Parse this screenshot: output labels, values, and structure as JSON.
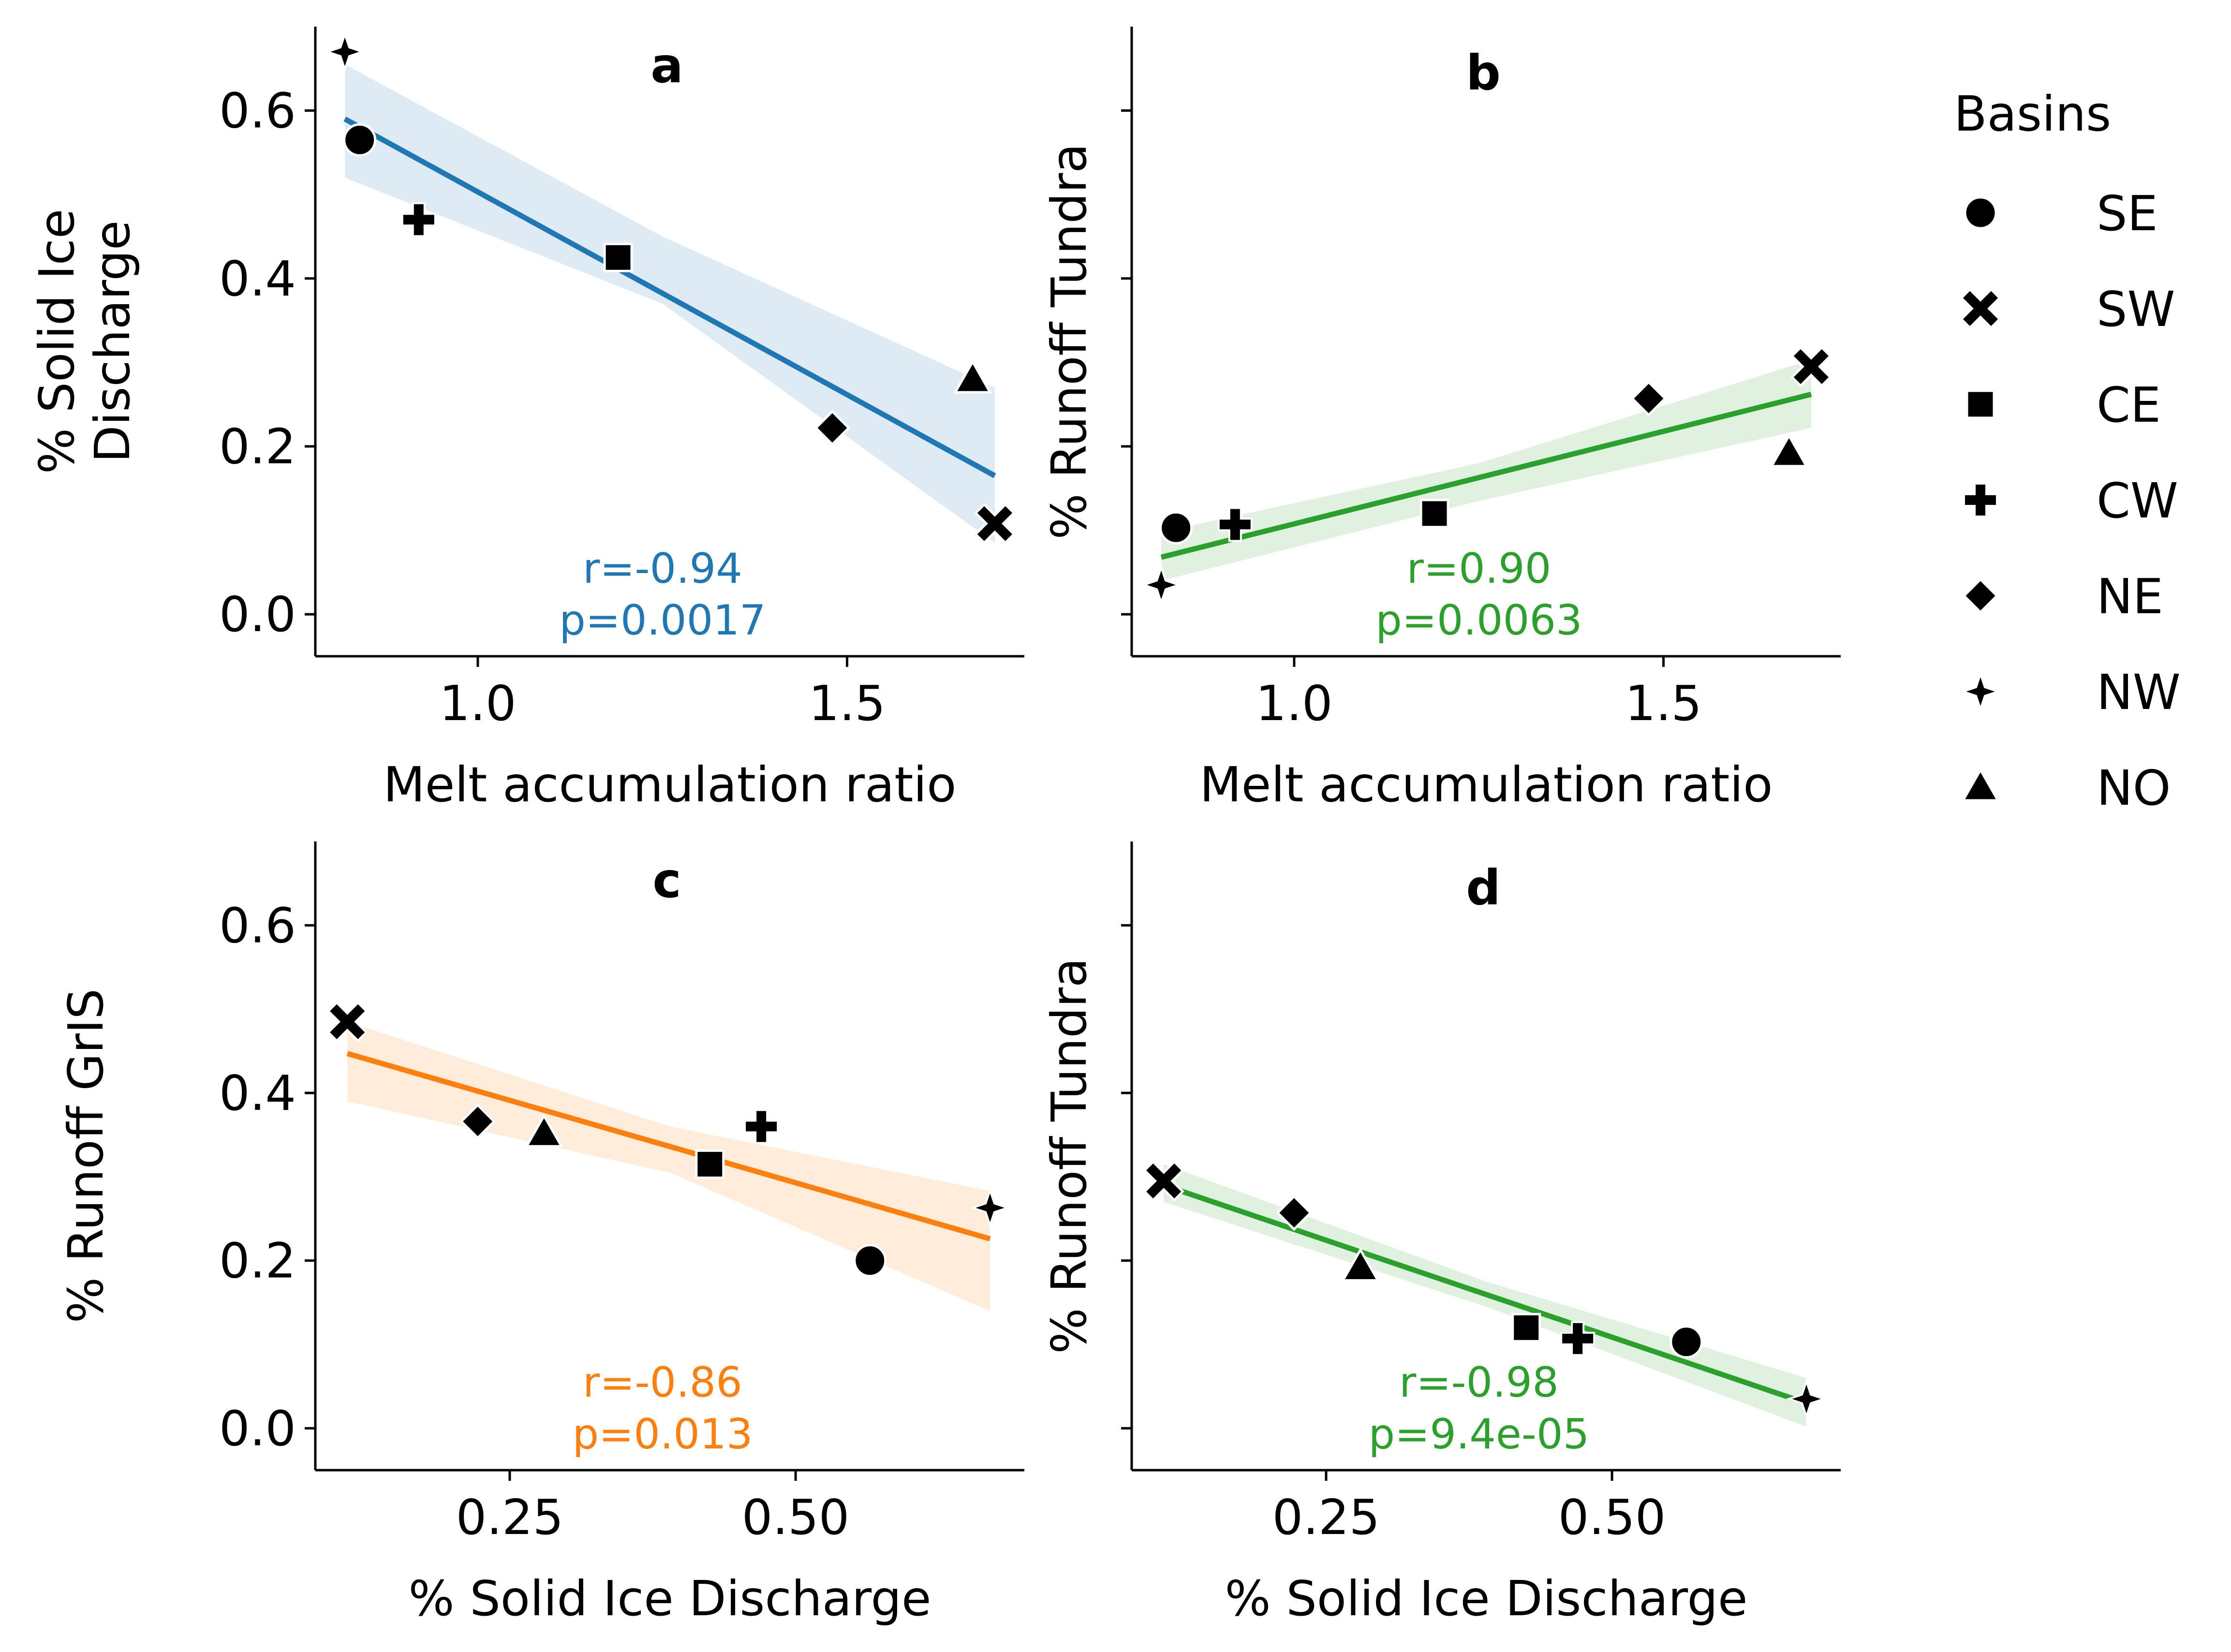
{
  "legend": {
    "title": "Basins",
    "entries": [
      {
        "label": "SE",
        "marker": "circle"
      },
      {
        "label": "SW",
        "marker": "x"
      },
      {
        "label": "CE",
        "marker": "square"
      },
      {
        "label": "CW",
        "marker": "plus"
      },
      {
        "label": "NE",
        "marker": "diamond"
      },
      {
        "label": "NW",
        "marker": "star4"
      },
      {
        "label": "NO",
        "marker": "triangle"
      }
    ]
  },
  "chart_data": [
    {
      "type": "scatter",
      "panel": "a",
      "xlabel": "Melt accumulation ratio",
      "ylabel": [
        "% Solid Ice",
        "Discharge"
      ],
      "xlim": [
        0.78,
        1.74
      ],
      "ylim": [
        -0.05,
        0.7
      ],
      "xticks": [
        {
          "v": 1.0,
          "label": "1.0"
        },
        {
          "v": 1.5,
          "label": "1.5"
        }
      ],
      "yticks": [
        {
          "v": 0.0,
          "label": "0.0"
        },
        {
          "v": 0.2,
          "label": "0.2"
        },
        {
          "v": 0.4,
          "label": "0.4"
        },
        {
          "v": 0.6,
          "label": "0.6"
        }
      ],
      "show_ytick_labels": true,
      "color": "#1f77b4",
      "band_color": "#1f77b4",
      "points": [
        {
          "basin": "SE",
          "marker": "circle",
          "x": 0.84,
          "y": 0.565
        },
        {
          "basin": "SW",
          "marker": "x",
          "x": 1.7,
          "y": 0.108
        },
        {
          "basin": "CE",
          "marker": "square",
          "x": 1.19,
          "y": 0.425
        },
        {
          "basin": "CW",
          "marker": "plus",
          "x": 0.92,
          "y": 0.47
        },
        {
          "basin": "NE",
          "marker": "diamond",
          "x": 1.48,
          "y": 0.222
        },
        {
          "basin": "NW",
          "marker": "star4",
          "x": 0.82,
          "y": 0.67
        },
        {
          "basin": "NO",
          "marker": "triangle",
          "x": 1.67,
          "y": 0.28
        }
      ],
      "fit": {
        "x": [
          0.82,
          1.7
        ],
        "y": [
          0.59,
          0.165
        ]
      },
      "band": {
        "x": [
          0.82,
          1.25,
          1.7
        ],
        "lower": [
          0.52,
          0.37,
          0.085
        ],
        "upper": [
          0.655,
          0.45,
          0.27
        ]
      },
      "r_label": "r=-0.94",
      "p_label": "p=0.0017"
    },
    {
      "type": "scatter",
      "panel": "b",
      "xlabel": "Melt accumulation ratio",
      "ylabel": [
        "% Runoff Tundra"
      ],
      "xlim": [
        0.78,
        1.74
      ],
      "ylim": [
        -0.05,
        0.7
      ],
      "xticks": [
        {
          "v": 1.0,
          "label": "1.0"
        },
        {
          "v": 1.5,
          "label": "1.5"
        }
      ],
      "yticks": [
        {
          "v": 0.0,
          "label": ""
        },
        {
          "v": 0.2,
          "label": ""
        },
        {
          "v": 0.4,
          "label": ""
        },
        {
          "v": 0.6,
          "label": ""
        }
      ],
      "show_ytick_labels": false,
      "color": "#2ca02c",
      "band_color": "#2ca02c",
      "points": [
        {
          "basin": "SE",
          "marker": "circle",
          "x": 0.84,
          "y": 0.103
        },
        {
          "basin": "SW",
          "marker": "x",
          "x": 1.7,
          "y": 0.295
        },
        {
          "basin": "CE",
          "marker": "square",
          "x": 1.19,
          "y": 0.12
        },
        {
          "basin": "CW",
          "marker": "plus",
          "x": 0.92,
          "y": 0.107
        },
        {
          "basin": "NE",
          "marker": "diamond",
          "x": 1.48,
          "y": 0.257
        },
        {
          "basin": "NW",
          "marker": "star4",
          "x": 0.82,
          "y": 0.035
        },
        {
          "basin": "NO",
          "marker": "triangle",
          "x": 1.67,
          "y": 0.192
        }
      ],
      "fit": {
        "x": [
          0.82,
          1.7
        ],
        "y": [
          0.068,
          0.262
        ]
      },
      "band": {
        "x": [
          0.82,
          1.25,
          1.7
        ],
        "lower": [
          0.04,
          0.135,
          0.222
        ],
        "upper": [
          0.098,
          0.18,
          0.303
        ]
      },
      "r_label": "r=0.90",
      "p_label": "p=0.0063"
    },
    {
      "type": "scatter",
      "panel": "c",
      "xlabel": "% Solid Ice Discharge",
      "ylabel": [
        "% Runoff GrIS"
      ],
      "xlim": [
        0.08,
        0.7
      ],
      "ylim": [
        -0.05,
        0.7
      ],
      "xticks": [
        {
          "v": 0.25,
          "label": "0.25"
        },
        {
          "v": 0.5,
          "label": "0.50"
        }
      ],
      "yticks": [
        {
          "v": 0.0,
          "label": "0.0"
        },
        {
          "v": 0.2,
          "label": "0.2"
        },
        {
          "v": 0.4,
          "label": "0.4"
        },
        {
          "v": 0.6,
          "label": "0.6"
        }
      ],
      "show_ytick_labels": true,
      "color": "#ff7f0e",
      "band_color": "#ff7f0e",
      "points": [
        {
          "basin": "SE",
          "marker": "circle",
          "x": 0.565,
          "y": 0.2
        },
        {
          "basin": "SW",
          "marker": "x",
          "x": 0.108,
          "y": 0.485
        },
        {
          "basin": "CE",
          "marker": "square",
          "x": 0.425,
          "y": 0.315
        },
        {
          "basin": "CW",
          "marker": "plus",
          "x": 0.47,
          "y": 0.36
        },
        {
          "basin": "NE",
          "marker": "diamond",
          "x": 0.222,
          "y": 0.366
        },
        {
          "basin": "NW",
          "marker": "star4",
          "x": 0.67,
          "y": 0.263
        },
        {
          "basin": "NO",
          "marker": "triangle",
          "x": 0.28,
          "y": 0.352
        }
      ],
      "fit": {
        "x": [
          0.108,
          0.67
        ],
        "y": [
          0.447,
          0.226
        ]
      },
      "band": {
        "x": [
          0.108,
          0.39,
          0.67
        ],
        "lower": [
          0.39,
          0.305,
          0.14
        ],
        "upper": [
          0.485,
          0.36,
          0.283
        ]
      },
      "r_label": "r=-0.86",
      "p_label": "p=0.013"
    },
    {
      "type": "scatter",
      "panel": "d",
      "xlabel": "% Solid Ice Discharge",
      "ylabel": [
        "% Runoff Tundra"
      ],
      "xlim": [
        0.08,
        0.7
      ],
      "ylim": [
        -0.05,
        0.7
      ],
      "xticks": [
        {
          "v": 0.25,
          "label": "0.25"
        },
        {
          "v": 0.5,
          "label": "0.50"
        }
      ],
      "yticks": [
        {
          "v": 0.0,
          "label": ""
        },
        {
          "v": 0.2,
          "label": ""
        },
        {
          "v": 0.4,
          "label": ""
        },
        {
          "v": 0.6,
          "label": ""
        }
      ],
      "show_ytick_labels": false,
      "color": "#2ca02c",
      "band_color": "#2ca02c",
      "points": [
        {
          "basin": "SE",
          "marker": "circle",
          "x": 0.565,
          "y": 0.103
        },
        {
          "basin": "SW",
          "marker": "x",
          "x": 0.108,
          "y": 0.295
        },
        {
          "basin": "CE",
          "marker": "square",
          "x": 0.425,
          "y": 0.12
        },
        {
          "basin": "CW",
          "marker": "plus",
          "x": 0.47,
          "y": 0.107
        },
        {
          "basin": "NE",
          "marker": "diamond",
          "x": 0.222,
          "y": 0.257
        },
        {
          "basin": "NW",
          "marker": "star4",
          "x": 0.67,
          "y": 0.035
        },
        {
          "basin": "NO",
          "marker": "triangle",
          "x": 0.28,
          "y": 0.192
        }
      ],
      "fit": {
        "x": [
          0.108,
          0.67
        ],
        "y": [
          0.29,
          0.03
        ]
      },
      "band": {
        "x": [
          0.108,
          0.39,
          0.67
        ],
        "lower": [
          0.27,
          0.145,
          0.002
        ],
        "upper": [
          0.315,
          0.175,
          0.06
        ]
      },
      "r_label": "r=-0.98",
      "p_label": "p=9.4e-05"
    }
  ]
}
